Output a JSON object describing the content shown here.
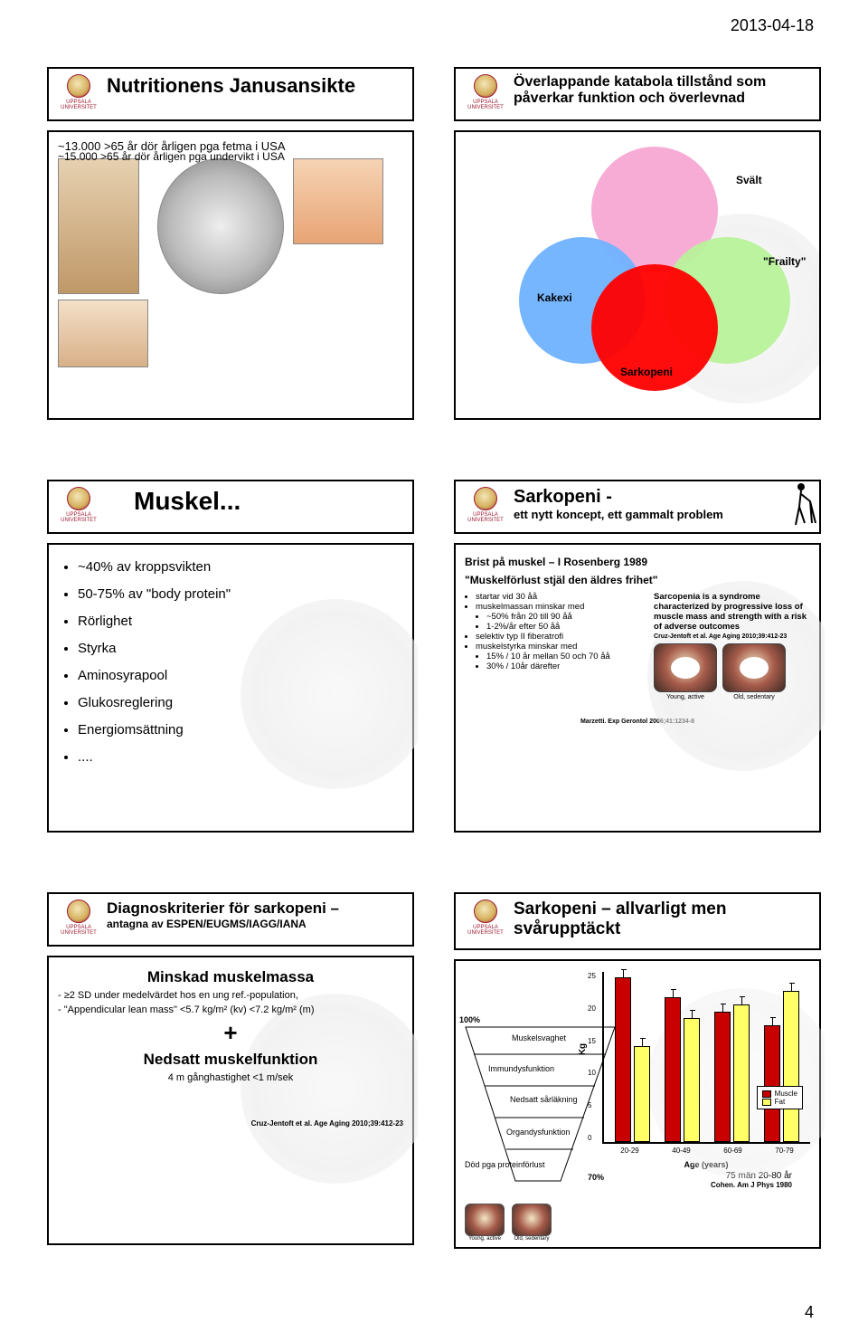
{
  "header_date": "2013-04-18",
  "page_number": "4",
  "logo_lines": [
    "UPPSALA",
    "UNIVERSITET"
  ],
  "s1": {
    "title": "Nutritionens Janusansikte",
    "line1": "~13.000 >65 år dör årligen pga fetma i USA",
    "line2": "~15.000 >65 år dör årligen pga undervikt i USA"
  },
  "s2": {
    "title": "Överlappande katabola tillstånd som påverkar funktion och överlevnad",
    "venn": {
      "svalt": {
        "label": "Svält",
        "color": "#f7a8d4"
      },
      "kakexi": {
        "label": "Kakexi",
        "color": "#6fb2ff"
      },
      "frailty": {
        "label": "\"Frailty\"",
        "color": "#b8f29a"
      },
      "sarkopeni": {
        "label": "Sarkopeni",
        "color": "#ff0000"
      }
    }
  },
  "s3": {
    "title": "Muskel...",
    "bullets": [
      "~40% av kroppsvikten",
      "50-75% av \"body protein\"",
      "Rörlighet",
      "Styrka",
      "Aminosyrapool",
      "Glukosreglering",
      "Energiomsättning",
      "...."
    ]
  },
  "s4": {
    "title": "Sarkopeni -",
    "subtitle": "ett nytt koncept, ett gammalt problem",
    "line1": "Brist på muskel – I Rosenberg 1989",
    "line2": "\"Muskelförlust stjäl den äldres frihet\"",
    "left_bullets": [
      "startar vid 30 åå",
      "muskelmassan minskar med",
      "  ~50% från 20 till 90 åå",
      "  1-2%/år efter 50 åå",
      "selektiv typ II fiberatrofi",
      "muskelstyrka minskar med",
      "  15% / 10 år mellan 50 och 70 åå",
      "  30% / 10år därefter"
    ],
    "right_text": "Sarcopenia is a syndrome characterized by progressive loss of muscle mass and strength with a risk of adverse outcomes",
    "right_ref": "Cruz-Jentoft et al. Age Aging 2010;39:412-23",
    "bottom_ref": "Marzetti. Exp Gerontol 2006;41:1234-8",
    "scan_labels": [
      "Young, active",
      "Old, sedentary"
    ]
  },
  "s5": {
    "title": "Diagnoskriterier för sarkopeni –",
    "subtitle": "antagna av  ESPEN/EUGMS/IAGG/IANA",
    "h1": "Minskad muskelmassa",
    "p1": "- ≥2 SD under medelvärdet hos en ung ref.-population,",
    "p2": "- \"Appendicular lean mass\" <5.7 kg/m² (kv) <7.2 kg/m² (m)",
    "plus": "+",
    "h2": "Nedsatt muskelfunktion",
    "p3": "4 m gånghastighet <1 m/sek",
    "ref": "Cruz-Jentoft et al. Age Aging 2010;39:412-23"
  },
  "s6": {
    "title": "Sarkopeni – allvarligt men svårupptäckt",
    "funnel": {
      "top_pct": "100%",
      "bot_pct": "70%",
      "labels": [
        "Muskelsvaghet",
        "Immundysfunktion",
        "Nedsatt sårläkning",
        "Organdysfunktion",
        "Död pga proteinförlust"
      ]
    },
    "chart": {
      "ylabel": "Kg",
      "xlabel": "Age (years)",
      "ylim": [
        0,
        25
      ],
      "ytick_step": 5,
      "categories": [
        "20-29",
        "40-49",
        "60-69",
        "70-79"
      ],
      "series": [
        {
          "name": "Muscle",
          "color": "#c80000",
          "values": [
            24,
            21,
            19,
            17
          ]
        },
        {
          "name": "Fat",
          "color": "#ffff66",
          "values": [
            14,
            18,
            20,
            22
          ]
        }
      ],
      "error": 1.2,
      "bg": "#ffffff",
      "grid": "none"
    },
    "note": "75 män 20-80 år",
    "ref": "Cohen. Am J Phys 1980",
    "scan_labels": [
      "Young, active",
      "Old, sedentary"
    ]
  }
}
